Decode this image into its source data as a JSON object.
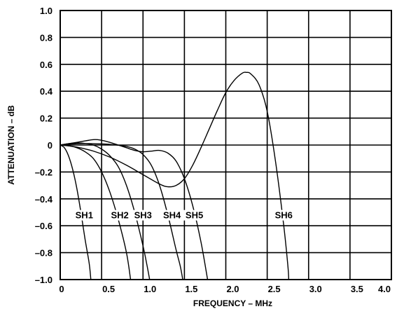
{
  "chart_data": {
    "type": "line",
    "title": "",
    "xlabel": "FREQUENCY – MHz",
    "ylabel": "ATTENUATION – dB",
    "xlim": [
      0,
      4.0
    ],
    "ylim": [
      -1.0,
      1.0
    ],
    "grid": true,
    "x_ticks": [
      {
        "value": 0,
        "label": "0"
      },
      {
        "value": 0.5,
        "label": "0.5"
      },
      {
        "value": 1.0,
        "label": "1.0"
      },
      {
        "value": 1.5,
        "label": "1.5"
      },
      {
        "value": 2.0,
        "label": "2.0"
      },
      {
        "value": 2.5,
        "label": "2.5"
      },
      {
        "value": 3.0,
        "label": "3.0"
      },
      {
        "value": 3.5,
        "label": "3.5"
      },
      {
        "value": 4.0,
        "label": "4.0"
      }
    ],
    "y_ticks": [
      {
        "value": 1.0,
        "label": "1.0"
      },
      {
        "value": 0.8,
        "label": "0.8"
      },
      {
        "value": 0.6,
        "label": "0.6"
      },
      {
        "value": 0.4,
        "label": "0.4"
      },
      {
        "value": 0.2,
        "label": "0.2"
      },
      {
        "value": 0,
        "label": "0"
      },
      {
        "value": -0.2,
        "label": "–0.2"
      },
      {
        "value": -0.4,
        "label": "–0.4"
      },
      {
        "value": -0.6,
        "label": "–0.6"
      },
      {
        "value": -0.8,
        "label": "–0.8"
      },
      {
        "value": -1.0,
        "label": "–1.0"
      }
    ],
    "series": [
      {
        "name": "SH1",
        "label_at": [
          0.29,
          -0.54
        ],
        "points": [
          [
            0,
            0
          ],
          [
            0.05,
            -0.02
          ],
          [
            0.1,
            -0.08
          ],
          [
            0.15,
            -0.18
          ],
          [
            0.2,
            -0.32
          ],
          [
            0.25,
            -0.5
          ],
          [
            0.3,
            -0.7
          ],
          [
            0.35,
            -0.88
          ],
          [
            0.37,
            -1.0
          ]
        ]
      },
      {
        "name": "SH2",
        "label_at": [
          0.72,
          -0.54
        ],
        "points": [
          [
            0,
            0
          ],
          [
            0.1,
            -0.005
          ],
          [
            0.2,
            -0.02
          ],
          [
            0.3,
            -0.05
          ],
          [
            0.4,
            -0.1
          ],
          [
            0.5,
            -0.2
          ],
          [
            0.6,
            -0.35
          ],
          [
            0.7,
            -0.55
          ],
          [
            0.8,
            -0.8
          ],
          [
            0.85,
            -1.0
          ]
        ]
      },
      {
        "name": "SH3",
        "label_at": [
          1.0,
          -0.54
        ],
        "points": [
          [
            0,
            0
          ],
          [
            0.1,
            0.01
          ],
          [
            0.2,
            0.015
          ],
          [
            0.3,
            0.012
          ],
          [
            0.4,
            0.0
          ],
          [
            0.5,
            -0.03
          ],
          [
            0.6,
            -0.08
          ],
          [
            0.7,
            -0.16
          ],
          [
            0.8,
            -0.3
          ],
          [
            0.9,
            -0.5
          ],
          [
            1.0,
            -0.75
          ],
          [
            1.05,
            -0.9
          ],
          [
            1.08,
            -1.0
          ]
        ]
      },
      {
        "name": "SH4",
        "label_at": [
          1.35,
          -0.54
        ],
        "points": [
          [
            0,
            0
          ],
          [
            0.2,
            0.01
          ],
          [
            0.4,
            0.01
          ],
          [
            0.6,
            0.005
          ],
          [
            0.8,
            -0.01
          ],
          [
            0.9,
            -0.03
          ],
          [
            1.0,
            -0.07
          ],
          [
            1.1,
            -0.15
          ],
          [
            1.2,
            -0.3
          ],
          [
            1.3,
            -0.52
          ],
          [
            1.4,
            -0.78
          ],
          [
            1.45,
            -0.9
          ],
          [
            1.48,
            -1.0
          ]
        ]
      },
      {
        "name": "SH5",
        "label_at": [
          1.62,
          -0.54
        ],
        "points": [
          [
            0,
            0
          ],
          [
            0.2,
            0.02
          ],
          [
            0.4,
            0.04
          ],
          [
            0.5,
            0.035
          ],
          [
            0.6,
            0.02
          ],
          [
            0.7,
            0.0
          ],
          [
            0.8,
            -0.02
          ],
          [
            0.9,
            -0.04
          ],
          [
            1.0,
            -0.05
          ],
          [
            1.1,
            -0.045
          ],
          [
            1.2,
            -0.04
          ],
          [
            1.3,
            -0.06
          ],
          [
            1.4,
            -0.12
          ],
          [
            1.5,
            -0.25
          ],
          [
            1.6,
            -0.45
          ],
          [
            1.7,
            -0.72
          ],
          [
            1.78,
            -1.0
          ]
        ]
      },
      {
        "name": "SH6",
        "label_at": [
          2.7,
          -0.54
        ],
        "points": [
          [
            0,
            0
          ],
          [
            0.2,
            -0.015
          ],
          [
            0.4,
            -0.045
          ],
          [
            0.6,
            -0.09
          ],
          [
            0.8,
            -0.15
          ],
          [
            1.0,
            -0.22
          ],
          [
            1.2,
            -0.29
          ],
          [
            1.3,
            -0.31
          ],
          [
            1.4,
            -0.3
          ],
          [
            1.5,
            -0.25
          ],
          [
            1.6,
            -0.15
          ],
          [
            1.7,
            -0.02
          ],
          [
            1.8,
            0.12
          ],
          [
            1.9,
            0.26
          ],
          [
            2.0,
            0.39
          ],
          [
            2.1,
            0.48
          ],
          [
            2.2,
            0.535
          ],
          [
            2.25,
            0.54
          ],
          [
            2.3,
            0.53
          ],
          [
            2.4,
            0.45
          ],
          [
            2.5,
            0.25
          ],
          [
            2.6,
            -0.12
          ],
          [
            2.7,
            -0.6
          ],
          [
            2.75,
            -0.9
          ],
          [
            2.76,
            -1.0
          ]
        ]
      }
    ]
  }
}
